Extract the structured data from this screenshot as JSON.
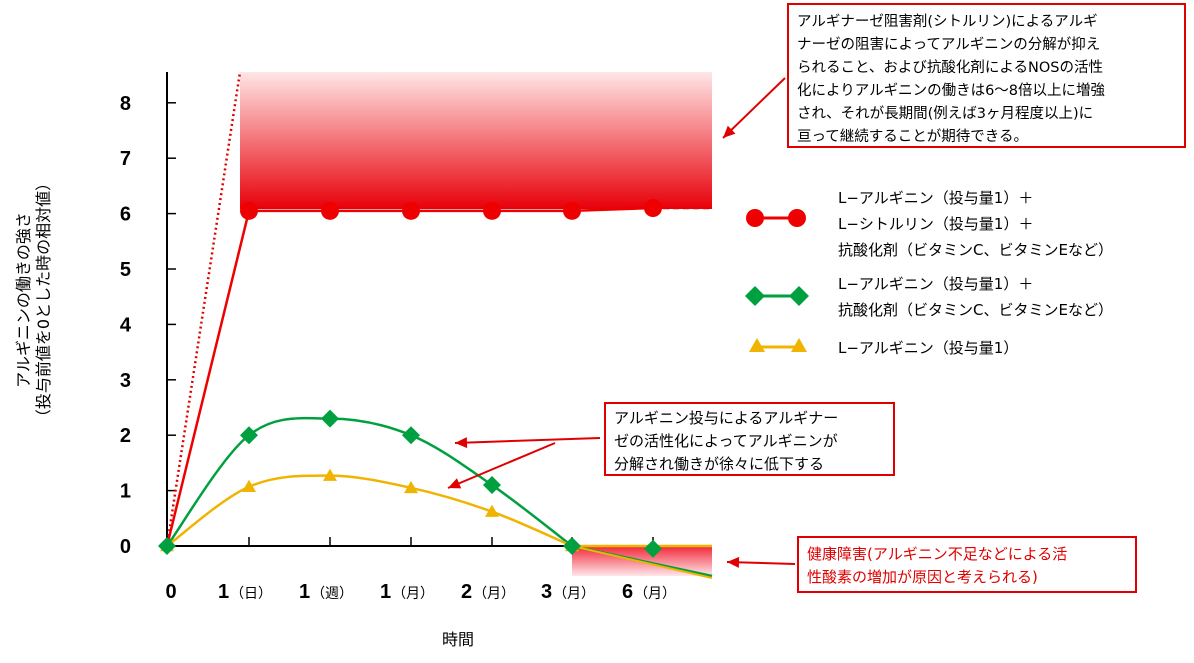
{
  "chart_data": {
    "type": "line",
    "xlabel": "時間",
    "ylabel_lines": [
      "アルギニンの働きの強さ",
      "（投与前値を0とした時の相対値）"
    ],
    "x_ticks": [
      {
        "main": "0",
        "suffix": ""
      },
      {
        "main": "1",
        "suffix": "（日）"
      },
      {
        "main": "1",
        "suffix": "（週）"
      },
      {
        "main": "1",
        "suffix": "（月）"
      },
      {
        "main": "2",
        "suffix": "（月）"
      },
      {
        "main": "3",
        "suffix": "（月）"
      },
      {
        "main": "6",
        "suffix": "（月）"
      }
    ],
    "y_ticks": [
      "0",
      "1",
      "2",
      "3",
      "4",
      "5",
      "6",
      "7",
      "8"
    ],
    "ylim": [
      0,
      8.5
    ],
    "grid": false,
    "legend_position": "right",
    "series": [
      {
        "name_lines": [
          "L−アルギニン（投与量1）＋",
          "L−シトルリン（投与量1）＋",
          "抗酸化剤（ビタミンC、ビタミンEなど）"
        ],
        "color": "#ee0000",
        "marker": "circle",
        "values": [
          0,
          6.05,
          6.05,
          6.05,
          6.05,
          6.05,
          6.1
        ]
      },
      {
        "name_lines": [
          "L−アルギニン（投与量1）＋",
          "抗酸化剤（ビタミンC、ビタミンEなど）"
        ],
        "color": "#00a040",
        "marker": "diamond",
        "values": [
          0,
          2.0,
          2.3,
          2.0,
          1.1,
          0.0,
          -0.05
        ]
      },
      {
        "name_lines": [
          "L−アルギニン（投与量1）"
        ],
        "color": "#f0b400",
        "marker": "triangle",
        "values": [
          0,
          1.07,
          1.27,
          1.05,
          0.62,
          0.0,
          0.0
        ]
      }
    ],
    "annotations": {
      "top": [
        "アルギナーゼ阻害剤(シトルリン)によるアルギ",
        "ナーゼの阻害によってアルギニンの分解が抑え",
        "られること、および抗酸化剤によるNOSの活性",
        "化によりアルギニンの働きは6〜8倍以上に増強",
        "され、それが長期間(例えば3ヶ月程度以上)に",
        "亘って継続することが期待できる。"
      ],
      "middle": [
        "アルギニン投与によるアルギナー",
        "ゼの活性化によってアルギニンが",
        "分解され働きが徐々に低下する"
      ],
      "bottom": [
        "健康障害(アルギニン不足などによる活",
        "性酸素の増加が原因と考えられる)"
      ]
    }
  }
}
